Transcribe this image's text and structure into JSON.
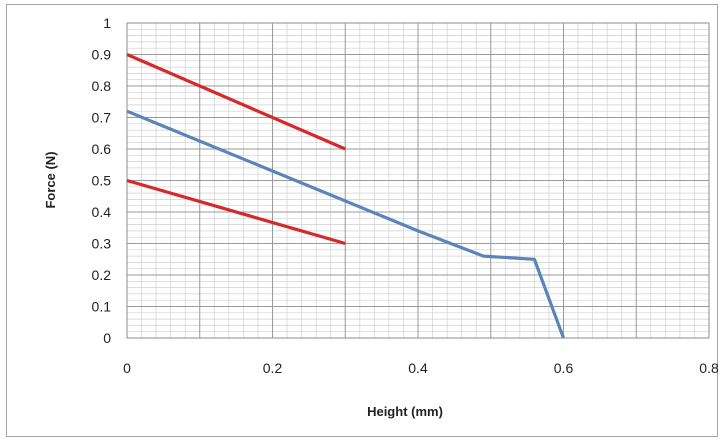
{
  "chart_data": {
    "type": "line",
    "title": "",
    "xlabel": "Height (mm)",
    "ylabel": "Force (N)",
    "xlim": [
      0,
      0.8
    ],
    "ylim": [
      0,
      1
    ],
    "x_ticks": [
      "0",
      "0.2",
      "0.4",
      "0.6",
      "0.8"
    ],
    "y_ticks": [
      "0",
      "0.1",
      "0.2",
      "0.3",
      "0.4",
      "0.5",
      "0.6",
      "0.7",
      "0.8",
      "0.9",
      "1"
    ],
    "grid": true,
    "legend": "none",
    "series": [
      {
        "color": "#d42a2a",
        "points": [
          [
            0,
            0.9
          ],
          [
            0.3,
            0.6
          ]
        ]
      },
      {
        "color": "#d42a2a",
        "points": [
          [
            0,
            0.5
          ],
          [
            0.3,
            0.3
          ]
        ]
      },
      {
        "color": "#5b84b9",
        "points": [
          [
            0,
            0.72
          ],
          [
            0.2,
            0.53
          ],
          [
            0.4,
            0.34
          ],
          [
            0.49,
            0.26
          ],
          [
            0.56,
            0.25
          ],
          [
            0.6,
            0.0
          ]
        ]
      }
    ]
  }
}
